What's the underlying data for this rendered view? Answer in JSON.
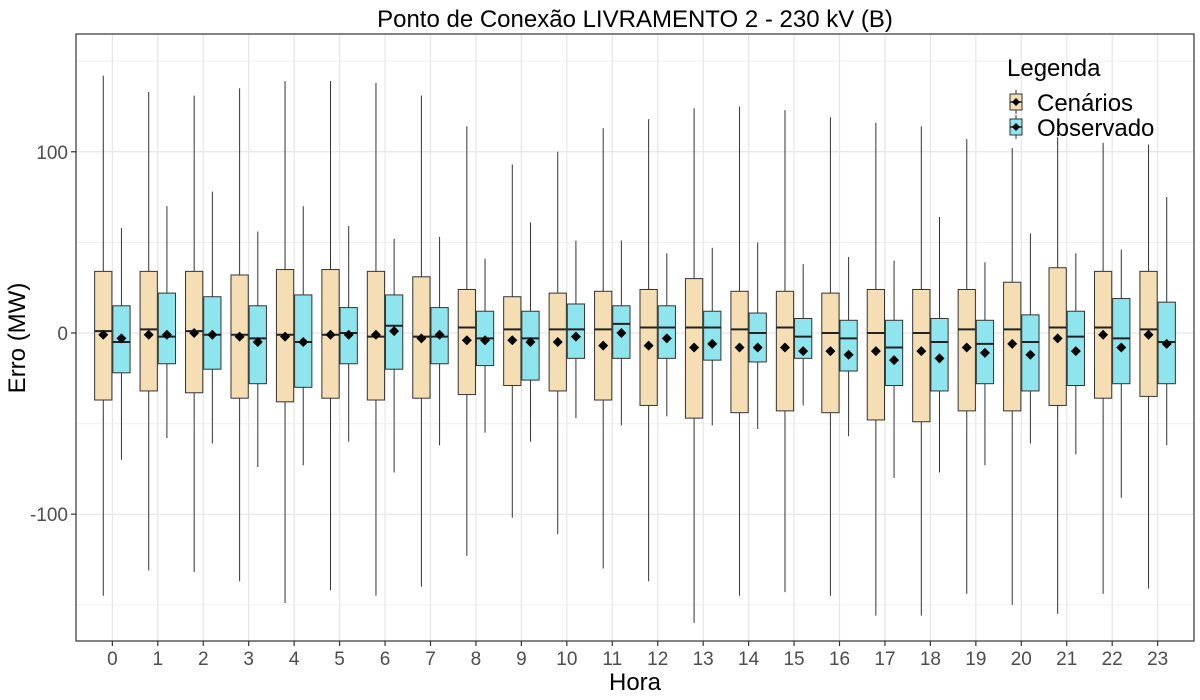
{
  "chart_data": {
    "type": "boxplot",
    "title": "Ponto de Conexão LIVRAMENTO 2 - 230 kV (B)",
    "xlabel": "Hora",
    "ylabel": "Erro (MW)",
    "categories": [
      "0",
      "1",
      "2",
      "3",
      "4",
      "5",
      "6",
      "7",
      "8",
      "9",
      "10",
      "11",
      "12",
      "13",
      "14",
      "15",
      "16",
      "17",
      "18",
      "19",
      "20",
      "21",
      "22",
      "23"
    ],
    "y_ticks": [
      -100,
      0,
      100
    ],
    "y_tick_labels": [
      "-100",
      "0",
      "100"
    ],
    "ylim": [
      -170,
      165
    ],
    "grid": true,
    "legend": {
      "title": "Legenda",
      "position": "top-right",
      "entries": [
        "Cenários",
        "Observado"
      ]
    },
    "series": [
      {
        "name": "Cenários",
        "color": "#f5deb3",
        "whisker_low": [
          -145,
          -131,
          -132,
          -137,
          -149,
          -142,
          -145,
          -140,
          -123,
          -102,
          -111,
          -130,
          -137,
          -160,
          -145,
          -143,
          -145,
          -156,
          -156,
          -144,
          -150,
          -155,
          -144,
          -141
        ],
        "q1": [
          -37,
          -32,
          -33,
          -36,
          -38,
          -36,
          -37,
          -36,
          -34,
          -29,
          -32,
          -37,
          -40,
          -47,
          -44,
          -43,
          -44,
          -48,
          -49,
          -43,
          -43,
          -40,
          -36,
          -35
        ],
        "median": [
          1,
          2,
          1,
          -1,
          -1,
          -1,
          -2,
          -2,
          3,
          2,
          2,
          2,
          3,
          3,
          2,
          3,
          0,
          0,
          0,
          2,
          2,
          3,
          3,
          2
        ],
        "q3": [
          34,
          34,
          34,
          32,
          35,
          35,
          34,
          31,
          24,
          20,
          22,
          23,
          24,
          30,
          23,
          23,
          22,
          24,
          24,
          24,
          28,
          36,
          34,
          34
        ],
        "whisker_high": [
          142,
          133,
          131,
          135,
          139,
          139,
          138,
          131,
          114,
          93,
          100,
          113,
          118,
          124,
          125,
          123,
          119,
          116,
          114,
          107,
          102,
          108,
          105,
          104
        ],
        "mean": [
          -1,
          -1,
          0,
          -2,
          -2,
          -1,
          -1,
          -3,
          -4,
          -4,
          -5,
          -7,
          -7,
          -8,
          -8,
          -8,
          -10,
          -10,
          -10,
          -8,
          -6,
          -3,
          -1,
          -1
        ]
      },
      {
        "name": "Observado",
        "color": "#8ee5ee",
        "whisker_low": [
          -70,
          -58,
          -61,
          -74,
          -73,
          -60,
          -77,
          -62,
          -55,
          -60,
          -47,
          -51,
          -46,
          -51,
          -53,
          -40,
          -57,
          -80,
          -77,
          -73,
          -61,
          -67,
          -91,
          -62
        ],
        "q1": [
          -22,
          -17,
          -20,
          -28,
          -30,
          -17,
          -20,
          -17,
          -18,
          -26,
          -14,
          -14,
          -14,
          -15,
          -16,
          -14,
          -21,
          -29,
          -32,
          -28,
          -32,
          -29,
          -28,
          -28
        ],
        "median": [
          -5,
          -2,
          -1,
          -3,
          -5,
          0,
          4,
          -2,
          -3,
          -3,
          2,
          5,
          3,
          3,
          0,
          -2,
          -3,
          -8,
          -5,
          -6,
          -5,
          -2,
          -3,
          -5
        ],
        "q3": [
          15,
          22,
          20,
          15,
          21,
          14,
          21,
          14,
          12,
          12,
          16,
          15,
          15,
          12,
          11,
          8,
          7,
          7,
          8,
          7,
          10,
          12,
          19,
          17
        ],
        "whisker_high": [
          58,
          70,
          78,
          56,
          70,
          59,
          52,
          53,
          41,
          61,
          51,
          51,
          44,
          47,
          50,
          38,
          42,
          40,
          64,
          39,
          55,
          44,
          46,
          75
        ],
        "mean": [
          -3,
          -1,
          -1,
          -5,
          -5,
          -1,
          1,
          -1,
          -4,
          -5,
          -2,
          0,
          -3,
          -6,
          -8,
          -10,
          -12,
          -15,
          -14,
          -11,
          -12,
          -10,
          -8,
          -6
        ]
      }
    ]
  }
}
